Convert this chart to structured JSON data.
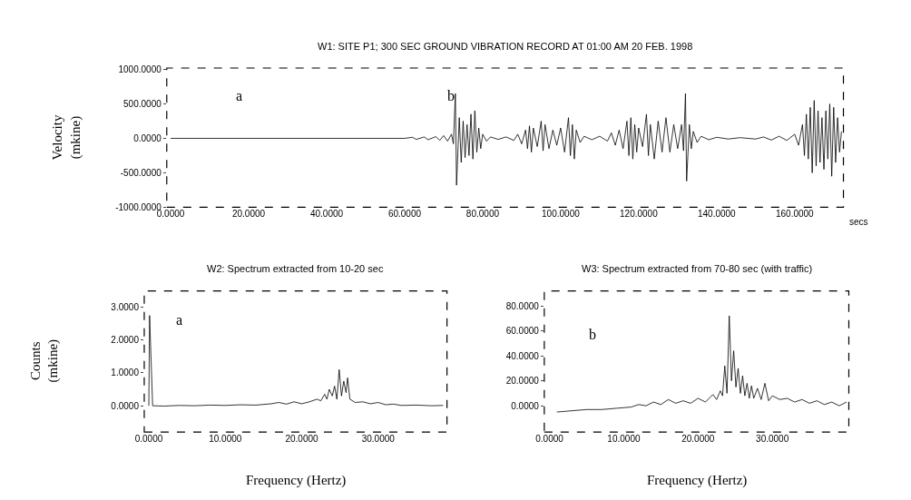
{
  "chart_data": [
    {
      "type": "line",
      "title": "W1: SITE P1; 300 SEC GROUND VIBRATION RECORD AT 01:00 AM 20 FEB. 1998",
      "ylabel": "Velocity\n(mkine)",
      "xlabel": "secs",
      "color": "#000000",
      "line_style": "solid",
      "marker": "none",
      "x": [
        0,
        60,
        62,
        63,
        65,
        66,
        68,
        69,
        70,
        71,
        72,
        72.5,
        73,
        73.3,
        74,
        74.5,
        75,
        75.5,
        76,
        76.5,
        77,
        77.5,
        78,
        78.5,
        79,
        79.5,
        80,
        81,
        82,
        84,
        86,
        88,
        89,
        90,
        91,
        91.5,
        92,
        92.5,
        93,
        94,
        95,
        95.5,
        96,
        97,
        98,
        99,
        100,
        101,
        102,
        102.5,
        103,
        103.5,
        104,
        105,
        106,
        108,
        110,
        112,
        113,
        114,
        115,
        116,
        117,
        117.5,
        118,
        118.5,
        119,
        119.5,
        120,
        121,
        122,
        122.5,
        123,
        124,
        125,
        126,
        127,
        128,
        129,
        130,
        131,
        131.5,
        132,
        132.3,
        133,
        133.5,
        134,
        135,
        136,
        138,
        140,
        143,
        146,
        150,
        152,
        154,
        156,
        158,
        160,
        161,
        162,
        162.5,
        163,
        163.5,
        164,
        164.5,
        165,
        165.5,
        166,
        166.5,
        167,
        167.5,
        168,
        168.5,
        169,
        169.5,
        170,
        170.5,
        171,
        171.5,
        172
      ],
      "values": [
        0,
        0,
        15,
        -15,
        20,
        -20,
        25,
        -30,
        40,
        -40,
        60,
        -80,
        650,
        -680,
        300,
        -350,
        250,
        -280,
        200,
        -250,
        350,
        -300,
        400,
        -200,
        150,
        -150,
        60,
        -40,
        20,
        -15,
        20,
        -30,
        60,
        -80,
        120,
        -150,
        180,
        -200,
        150,
        -120,
        250,
        -180,
        200,
        -150,
        120,
        -100,
        150,
        -200,
        300,
        -250,
        200,
        -300,
        120,
        -60,
        30,
        -20,
        30,
        -40,
        80,
        -100,
        120,
        -150,
        250,
        -250,
        300,
        -300,
        200,
        -200,
        150,
        -120,
        350,
        -250,
        200,
        -300,
        250,
        -200,
        300,
        -200,
        200,
        -150,
        200,
        -180,
        650,
        -620,
        200,
        -150,
        100,
        -60,
        30,
        -20,
        15,
        -10,
        10,
        -10,
        20,
        -25,
        30,
        -30,
        60,
        -100,
        200,
        -250,
        350,
        -300,
        450,
        -500,
        550,
        -400,
        400,
        -350,
        300,
        -450,
        400,
        -300,
        500,
        -550,
        450,
        -350,
        300,
        -200,
        100
      ],
      "xlim": [
        -1,
        172.5
      ],
      "ylim": [
        -1000,
        1020
      ],
      "xticks": [
        {
          "value": 0,
          "label": "0.0000"
        },
        {
          "value": 20,
          "label": "20.0000"
        },
        {
          "value": 40,
          "label": "40.0000"
        },
        {
          "value": 60,
          "label": "60.0000"
        },
        {
          "value": 80,
          "label": "80.0000"
        },
        {
          "value": 100,
          "label": "100.0000"
        },
        {
          "value": 120,
          "label": "120.0000"
        },
        {
          "value": 140,
          "label": "140.0000"
        },
        {
          "value": 160,
          "label": "160.0000"
        }
      ],
      "yticks": [
        {
          "value": -1000,
          "label": "-1000.0000"
        },
        {
          "value": -500,
          "label": "-500.0000"
        },
        {
          "value": 0,
          "label": "0.0000"
        },
        {
          "value": 500,
          "label": "500.0000"
        },
        {
          "value": 1000,
          "label": "1000.0000"
        }
      ],
      "annotations": [
        "a",
        "b"
      ]
    },
    {
      "type": "line",
      "title": "W2: Spectrum extracted from 10-20 sec",
      "ylabel": "Counts\n(mkine)",
      "xlabel": "Frequency (Hertz)",
      "color": "#000000",
      "line_style": "solid",
      "marker": "none",
      "x": [
        0,
        0.1,
        0.5,
        2,
        4,
        6,
        8,
        10,
        12,
        14,
        16,
        17,
        18,
        19,
        20,
        21,
        22,
        22.5,
        23,
        23.3,
        23.6,
        24,
        24.3,
        24.6,
        24.9,
        25.2,
        25.5,
        25.8,
        26,
        26.3,
        27,
        28,
        29,
        30,
        31,
        32,
        33,
        35,
        37,
        38.5
      ],
      "values": [
        0,
        2.75,
        0,
        -0.01,
        0.01,
        0,
        0.02,
        0.01,
        0.03,
        0.02,
        0.06,
        0.1,
        0.05,
        0.12,
        0.06,
        0.12,
        0.2,
        0.15,
        0.35,
        0.2,
        0.5,
        0.3,
        0.6,
        0.2,
        1.1,
        0.3,
        0.75,
        0.4,
        0.85,
        0.2,
        0.1,
        0.12,
        0.06,
        0.1,
        0.03,
        0.05,
        0.01,
        0.02,
        0,
        0.01
      ],
      "xlim": [
        -0.6,
        39
      ],
      "ylim": [
        -0.8,
        3.5
      ],
      "xticks": [
        {
          "value": 0,
          "label": "0.0000"
        },
        {
          "value": 10,
          "label": "10.0000"
        },
        {
          "value": 20,
          "label": "20.0000"
        },
        {
          "value": 30,
          "label": "30.0000"
        }
      ],
      "yticks": [
        {
          "value": 0,
          "label": "0.0000"
        },
        {
          "value": 1,
          "label": "1.0000"
        },
        {
          "value": 2,
          "label": "2.0000"
        },
        {
          "value": 3,
          "label": "3.0000"
        }
      ],
      "annotations": [
        "a"
      ]
    },
    {
      "type": "line",
      "title": "W3: Spectrum extracted from 70-80 sec (with traffic)",
      "xlabel": "Frequency (Hertz)",
      "color": "#000000",
      "line_style": "solid",
      "marker": "none",
      "x": [
        1,
        3,
        5,
        7,
        9,
        11,
        12,
        13,
        14,
        15,
        16,
        17,
        18,
        19,
        20,
        21,
        22,
        22.5,
        23,
        23.3,
        23.6,
        23.9,
        24.2,
        24.5,
        24.8,
        25.1,
        25.4,
        25.7,
        26,
        26.3,
        26.6,
        26.9,
        27.2,
        27.5,
        28,
        28.5,
        29,
        29.5,
        30,
        31,
        32,
        33,
        34,
        35,
        36,
        37,
        38,
        39,
        40
      ],
      "values": [
        -5,
        -4,
        -3,
        -3,
        -2,
        -1,
        1,
        0,
        3,
        1,
        5,
        2,
        4,
        2,
        6,
        3,
        9,
        5,
        12,
        8,
        32,
        10,
        72,
        20,
        44,
        15,
        30,
        10,
        24,
        8,
        18,
        6,
        16,
        6,
        14,
        5,
        18,
        4,
        8,
        5,
        6,
        3,
        5,
        2,
        4,
        1,
        3,
        0,
        3
      ],
      "xlim": [
        -0.7,
        40.3
      ],
      "ylim": [
        -21,
        92
      ],
      "xticks": [
        {
          "value": 0,
          "label": "0.0000"
        },
        {
          "value": 10,
          "label": "10.0000"
        },
        {
          "value": 20,
          "label": "20.0000"
        },
        {
          "value": 30,
          "label": "30.0000"
        }
      ],
      "yticks": [
        {
          "value": 0,
          "label": "0.0000"
        },
        {
          "value": 20,
          "label": "20.0000"
        },
        {
          "value": 40,
          "label": "40.0000"
        },
        {
          "value": 60,
          "label": "60.0000"
        },
        {
          "value": 80,
          "label": "80.0000"
        }
      ],
      "annotations": [
        "b"
      ]
    }
  ]
}
